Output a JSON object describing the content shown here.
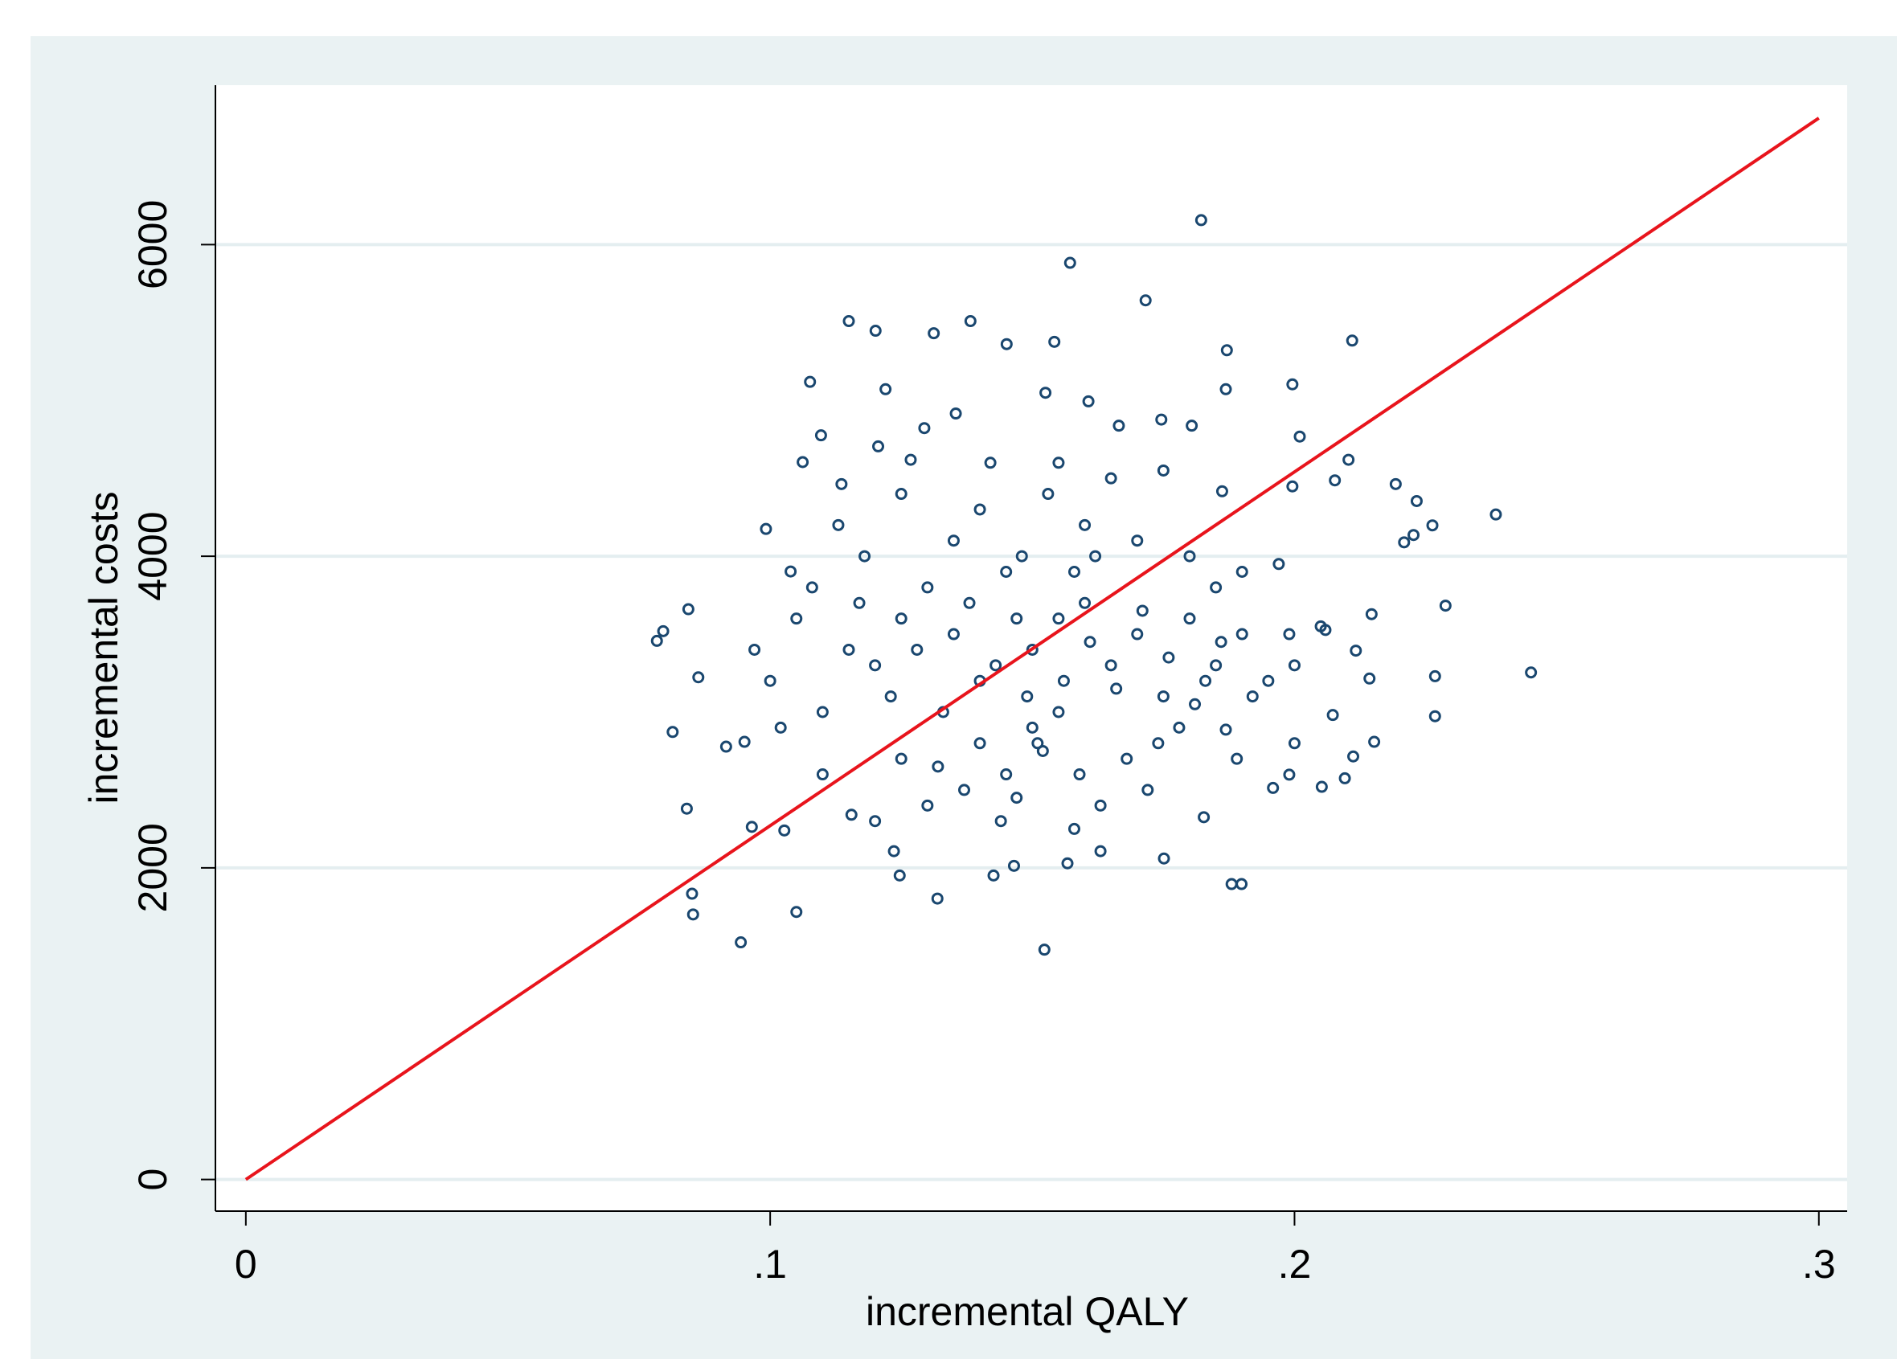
{
  "chart_data": {
    "type": "scatter",
    "x_label": "incremental QALY",
    "y_label": "incremental costs",
    "xlim": [
      -0.0058,
      0.3054
    ],
    "ylim": [
      -203,
      7023
    ],
    "xticks": [
      0,
      {
        "value": 0.1,
        "label": ".1"
      },
      {
        "value": 0.2,
        "label": ".2"
      },
      {
        "value": 0.3,
        "label": ".3"
      }
    ],
    "yticks": [
      0,
      2000,
      4000,
      6000
    ],
    "grid": true,
    "series": [
      {
        "color": "#1a476f",
        "x": [
          0.1822,
          0.1572,
          0.1716,
          0.115,
          0.1382,
          0.1201,
          0.1312,
          0.1451,
          0.1542,
          0.211,
          0.1871,
          0.1076,
          0.2384,
          0.2451,
          0.2288,
          0.0784,
          0.0796,
          0.0844,
          0.0863,
          0.0814,
          0.0841,
          0.0851,
          0.0853,
          0.0944,
          0.105,
          0.1523,
          0.1319,
          0.188,
          0.1899,
          0.2268,
          0.2268,
          0.2152,
          0.2052,
          0.2193,
          0.2233,
          0.2263,
          0.2209,
          0.2227,
          0.2073,
          0.2143,
          0.2096,
          0.2112,
          0.2103,
          0.1996,
          0.201,
          0.0992,
          0.1039,
          0.1062,
          0.1097,
          0.0951,
          0.0916,
          0.0965,
          0.1027,
          0.1155,
          0.1236,
          0.1247,
          0.1426,
          0.1465,
          0.1567,
          0.1751,
          0.163,
          0.1827,
          0.1959,
          0.199,
          0.1869,
          0.2059,
          0.2117,
          0.2147,
          0.2077,
          0.1996,
          0.1862,
          0.1804,
          0.1746,
          0.1665,
          0.1607,
          0.1525,
          0.1354,
          0.1294,
          0.122,
          0.1268,
          0.1206,
          0.1136,
          0.1869,
          0.12,
          0.125,
          0.13,
          0.135,
          0.14,
          0.145,
          0.15,
          0.155,
          0.16,
          0.165,
          0.17,
          0.175,
          0.18,
          0.185,
          0.19,
          0.195,
          0.11,
          0.115,
          0.105,
          0.1,
          0.14,
          0.145,
          0.15,
          0.152,
          0.155,
          0.158,
          0.162,
          0.168,
          0.172,
          0.178,
          0.13,
          0.125,
          0.12,
          0.135,
          0.14,
          0.148,
          0.153,
          0.16,
          0.17,
          0.18,
          0.185,
          0.19,
          0.197,
          0.2,
          0.205,
          0.2,
          0.11,
          0.108,
          0.113,
          0.118,
          0.123,
          0.128,
          0.133,
          0.138,
          0.143,
          0.147,
          0.149,
          0.151,
          0.156,
          0.161,
          0.166,
          0.171,
          0.176,
          0.181,
          0.186,
          0.189,
          0.192,
          0.163,
          0.158,
          0.144,
          0.137,
          0.142,
          0.155,
          0.165,
          0.175,
          0.125,
          0.117,
          0.102,
          0.097,
          0.199,
          0.183,
          0.174,
          0.159,
          0.147,
          0.132
        ],
        "values": [
          6157,
          5883,
          5642,
          5509,
          5509,
          5447,
          5431,
          5361,
          5376,
          5384,
          5322,
          5119,
          4268,
          3254,
          3683,
          3457,
          3519,
          3660,
          3223,
          2872,
          2380,
          1834,
          1701,
          1522,
          1717,
          1475,
          1803,
          1896,
          1896,
          3230,
          2973,
          2809,
          2520,
          4463,
          4354,
          4198,
          4089,
          4136,
          2981,
          3215,
          2575,
          2715,
          4619,
          5103,
          4768,
          4175,
          3902,
          4604,
          4776,
          2809,
          2778,
          2263,
          2240,
          2341,
          2107,
          1951,
          1951,
          2013,
          2029,
          2060,
          2107,
          2325,
          2513,
          2598,
          2887,
          3527,
          3394,
          3628,
          4487,
          4448,
          4417,
          4838,
          4877,
          4838,
          4994,
          5049,
          4916,
          4822,
          5072,
          4619,
          4705,
          4463,
          5072,
          3300,
          3600,
          3800,
          3500,
          3200,
          3900,
          3400,
          3000,
          3700,
          3300,
          3500,
          3100,
          3600,
          3300,
          3500,
          3200,
          3000,
          3400,
          3600,
          3200,
          2800,
          2600,
          2900,
          2750,
          3600,
          3900,
          4000,
          2700,
          2500,
          2900,
          2400,
          2700,
          2300,
          4100,
          4300,
          4000,
          4400,
          4200,
          4100,
          4000,
          3800,
          3900,
          3950,
          3300,
          3550,
          2800,
          2600,
          3800,
          4200,
          4000,
          3100,
          3400,
          3000,
          3700,
          3300,
          3600,
          3100,
          2800,
          3200,
          3450,
          3150,
          3650,
          3350,
          3050,
          3450,
          2700,
          3100,
          2400,
          2250,
          2300,
          2500,
          4600,
          4600,
          4500,
          4550,
          4400,
          3700,
          2900,
          3400,
          3500,
          3200,
          2800,
          2600,
          2450,
          2650
        ]
      }
    ],
    "lines": [
      {
        "color": "#e8141c",
        "x": [
          0,
          0.3
        ],
        "values": [
          0,
          6812
        ]
      }
    ]
  }
}
